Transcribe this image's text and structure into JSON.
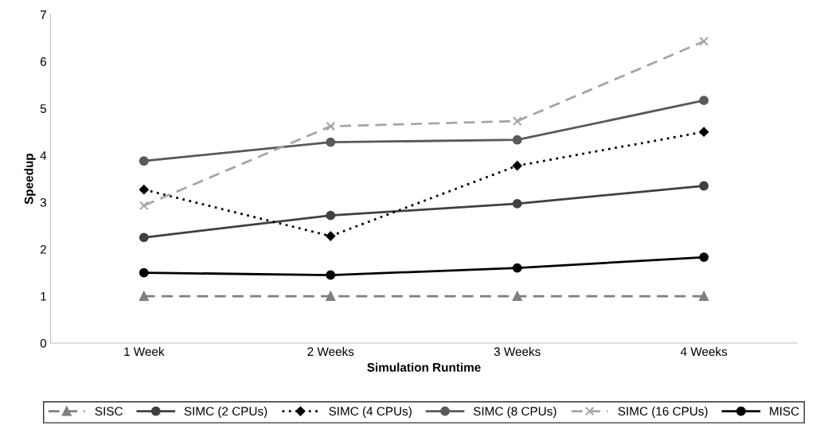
{
  "chart_data": {
    "type": "line",
    "xlabel": "Simulation Runtime",
    "ylabel": "Speedup",
    "categories": [
      "1 Week",
      "2 Weeks",
      "3 Weeks",
      "4 Weeks"
    ],
    "ylim": [
      0,
      7
    ],
    "yticks": [
      0,
      1,
      2,
      3,
      4,
      5,
      6,
      7
    ],
    "grid": false,
    "legend": "bottom",
    "series": [
      {
        "name": "SISC",
        "color": "#7f7f7f",
        "line_style": "dashed",
        "marker": "triangle",
        "values": [
          1,
          1,
          1,
          1
        ]
      },
      {
        "name": "SIMC (2 CPUs)",
        "color": "#404040",
        "line_style": "solid",
        "marker": "circle",
        "values": [
          2.25,
          2.72,
          2.97,
          3.35
        ]
      },
      {
        "name": "SIMC (4 CPUs)",
        "color": "#000000",
        "line_style": "dotted",
        "marker": "diamond",
        "values": [
          3.27,
          2.28,
          3.78,
          4.5
        ]
      },
      {
        "name": "SIMC (8 CPUs)",
        "color": "#595959",
        "line_style": "solid",
        "marker": "circle",
        "values": [
          3.88,
          4.28,
          4.33,
          5.17
        ]
      },
      {
        "name": "SIMC (16 CPUs)",
        "color": "#a6a6a6",
        "line_style": "dashed",
        "marker": "cross",
        "values": [
          2.93,
          4.62,
          4.73,
          6.43
        ]
      },
      {
        "name": "MISC",
        "color": "#000000",
        "line_style": "solid",
        "marker": "circle",
        "values": [
          1.5,
          1.45,
          1.6,
          1.83
        ]
      }
    ]
  }
}
